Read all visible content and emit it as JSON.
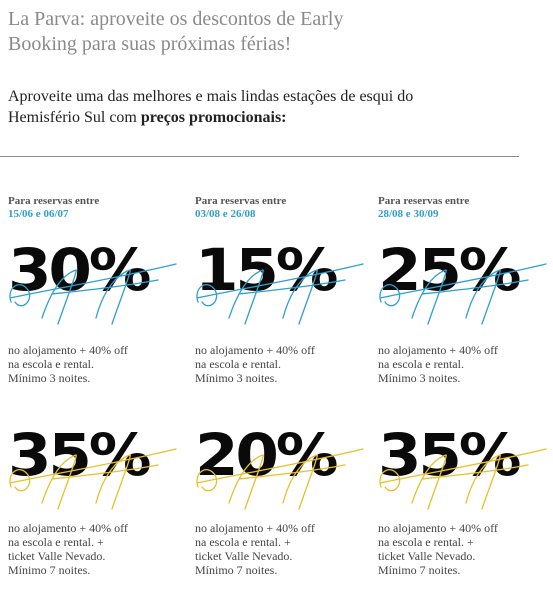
{
  "headline": {
    "line1": "La Parva: aproveite os descontos de Early",
    "line2": "Booking para suas próximas férias!"
  },
  "intro": {
    "line1": "Aproveite uma das melhores e mais lindas estações de esqui do",
    "line2_prefix": "Hemisfério Sul com ",
    "line2_bold": "preços promocionais:"
  },
  "accent_colors": {
    "blue": "#2f9fd0",
    "gold": "#e8c02a"
  },
  "offers_top": [
    {
      "label": "Para reservas entre",
      "dates": "15/06 e 06/07",
      "percent": "30%",
      "off_word": "off",
      "off_color": "#2f9fd0",
      "lines": [
        "no alojamento + 40% off",
        "na escola e rental.",
        "Mínimo 3 noites."
      ]
    },
    {
      "label": "Para reservas entre",
      "dates": "03/08 e 26/08",
      "percent": "15%",
      "off_word": "off",
      "off_color": "#2f9fd0",
      "lines": [
        "no alojamento + 40% off",
        "na escola e rental.",
        "Mínimo 3 noites."
      ]
    },
    {
      "label": "Para reservas entre",
      "dates": "28/08 e 30/09",
      "percent": "25%",
      "off_word": "off",
      "off_color": "#2f9fd0",
      "lines": [
        "no alojamento + 40% off",
        "na escola e rental.",
        "Mínimo 3 noites."
      ]
    }
  ],
  "offers_bottom": [
    {
      "percent": "35%",
      "off_word": "off",
      "off_color": "#e8c02a",
      "lines": [
        "no alojamento + 40% off",
        "na escola e rental. +",
        "ticket Valle Nevado.",
        "Mínimo 7 noites."
      ]
    },
    {
      "percent": "20%",
      "off_word": "off",
      "off_color": "#e8c02a",
      "lines": [
        "no alojamento + 40% off",
        "na escola e rental. +",
        "ticket Valle Nevado.",
        "Mínimo 7 noites."
      ]
    },
    {
      "percent": "35%",
      "off_word": "off",
      "off_color": "#e8c02a",
      "lines": [
        "no alojamento + 40% off",
        "na escola e rental. +",
        "ticket Valle Nevado.",
        "Mínimo 7 noites."
      ]
    }
  ]
}
